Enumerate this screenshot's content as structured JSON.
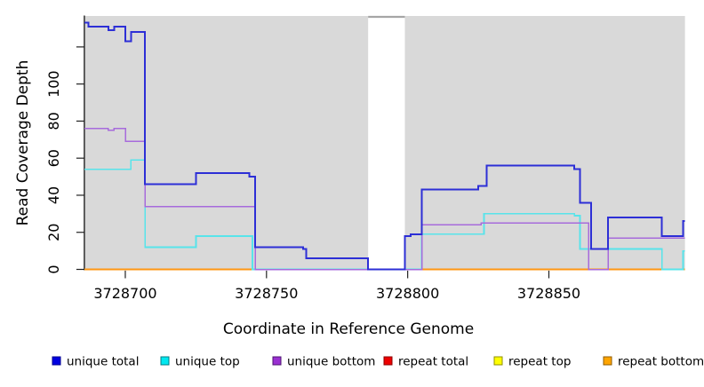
{
  "chart_data": {
    "type": "line",
    "title": "",
    "xlabel": "Coordinate in Reference Genome",
    "ylabel": "Read Coverage Depth",
    "xlim": [
      3728685.5,
      3728898.2
    ],
    "ylim": [
      0,
      136.7
    ],
    "x_ticks": [
      3728700,
      3728750,
      3728800,
      3728850
    ],
    "x_tick_labels": [
      "3728700",
      "3728750",
      "3728800",
      "3728850"
    ],
    "y_ticks": [
      0,
      20,
      40,
      60,
      80,
      100,
      120
    ],
    "y_tick_labels": [
      "0",
      "20",
      "40",
      "60",
      "80",
      "100",
      ""
    ],
    "grid": false,
    "plot_bg_color": "#d9d9d9",
    "gap_region": {
      "x1": 3728786,
      "x2": 3728799,
      "fill": "#ffffff",
      "top_border_color": "#a6a6a6"
    },
    "legend_position": "bottom",
    "series": [
      {
        "name": "repeat-top",
        "label": "repeat top",
        "color": "#ffff00",
        "width": 1.5,
        "steps": [
          [
            3728685.5,
            0
          ],
          [
            3728898.2,
            0
          ]
        ]
      },
      {
        "name": "repeat-total",
        "label": "repeat total",
        "color": "#ee0000",
        "width": 1.5,
        "steps": [
          [
            3728685.5,
            0
          ],
          [
            3728898.2,
            0
          ]
        ]
      },
      {
        "name": "repeat-bottom",
        "label": "repeat bottom",
        "color": "#ff9714",
        "width": 2,
        "steps": [
          [
            3728685.5,
            0
          ],
          [
            3728898.2,
            0
          ]
        ]
      },
      {
        "name": "unique-top",
        "label": "unique top",
        "color": "#58e4ea",
        "width": 1.7,
        "steps": [
          [
            3728685.5,
            54
          ],
          [
            3728702,
            59
          ],
          [
            3728707,
            12
          ],
          [
            3728725,
            18
          ],
          [
            3728745,
            0
          ],
          [
            3728805,
            19
          ],
          [
            3728827,
            30
          ],
          [
            3728859,
            29
          ],
          [
            3728861,
            11
          ],
          [
            3728890,
            0
          ],
          [
            3728897.5,
            10
          ],
          [
            3728898.2,
            10
          ]
        ]
      },
      {
        "name": "unique-bottom",
        "label": "unique bottom",
        "color": "#a76bdc",
        "width": 1.5,
        "steps": [
          [
            3728685.5,
            76
          ],
          [
            3728694,
            75
          ],
          [
            3728696,
            76
          ],
          [
            3728700,
            69
          ],
          [
            3728707,
            34
          ],
          [
            3728746,
            0
          ],
          [
            3728805,
            24
          ],
          [
            3728826,
            25
          ],
          [
            3728864,
            0
          ],
          [
            3728871,
            17
          ],
          [
            3728898.2,
            17
          ]
        ]
      },
      {
        "name": "unique-total",
        "label": "unique total",
        "color": "#2d2fd6",
        "width": 2,
        "steps": [
          [
            3728685.5,
            133
          ],
          [
            3728687,
            131
          ],
          [
            3728694,
            129
          ],
          [
            3728696,
            131
          ],
          [
            3728700,
            123
          ],
          [
            3728702,
            128
          ],
          [
            3728707,
            46
          ],
          [
            3728725,
            52
          ],
          [
            3728744,
            50
          ],
          [
            3728746,
            12
          ],
          [
            3728763,
            11
          ],
          [
            3728764,
            6
          ],
          [
            3728786,
            0
          ],
          [
            3728799,
            18
          ],
          [
            3728801,
            19
          ],
          [
            3728805,
            43
          ],
          [
            3728825,
            45
          ],
          [
            3728828,
            56
          ],
          [
            3728859,
            54
          ],
          [
            3728861,
            36
          ],
          [
            3728865,
            11
          ],
          [
            3728871,
            28
          ],
          [
            3728890,
            18
          ],
          [
            3728897.5,
            26
          ],
          [
            3728898.2,
            26
          ]
        ]
      }
    ],
    "zero_line_overlays": [
      {
        "x1": 3728746,
        "x2": 3728805,
        "color": "#d0507e"
      },
      {
        "x1": 3728890,
        "x2": 3728897.5,
        "color": "#7fcf9f"
      }
    ],
    "legend": [
      {
        "label": "unique total",
        "fill": "#0000e1",
        "border": "#000090"
      },
      {
        "label": "unique top",
        "fill": "#00e8f0",
        "border": "#007d85"
      },
      {
        "label": "unique bottom",
        "fill": "#9a30d2",
        "border": "#4d1570"
      },
      {
        "label": "repeat total",
        "fill": "#ee0000",
        "border": "#8b0000"
      },
      {
        "label": "repeat top",
        "fill": "#ffff00",
        "border": "#8f8f00"
      },
      {
        "label": "repeat bottom",
        "fill": "#ffa500",
        "border": "#8f5c00"
      }
    ]
  }
}
